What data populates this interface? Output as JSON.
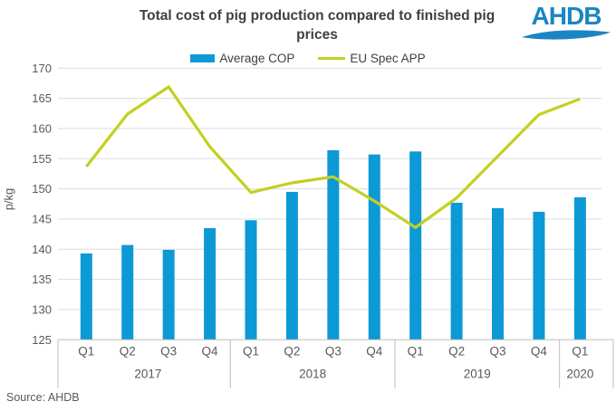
{
  "title": {
    "line1": "Total cost of pig production compared to finished pig",
    "line2": "prices"
  },
  "logo": {
    "text": "AHDB",
    "color": "#1b85c4"
  },
  "legend": [
    {
      "label": "Average COP",
      "type": "bar",
      "color": "#0d99d6"
    },
    {
      "label": "EU Spec APP",
      "type": "line",
      "color": "#c3d021"
    }
  ],
  "source": "Source: AHDB",
  "appearance": {
    "bar_blue": "#0d99d6",
    "line_green": "#c3d021",
    "title_color": "#3f3f3f",
    "label_color": "#595959",
    "grid_color": "#dadde1",
    "axis_color": "#bfbfbf"
  },
  "chart_data": {
    "type": "bar",
    "subtype": "bar+line combo",
    "title": "Total cost of pig production compared to finished pig prices",
    "categories": [
      "Q1",
      "Q2",
      "Q3",
      "Q4",
      "Q1",
      "Q2",
      "Q3",
      "Q4",
      "Q1",
      "Q2",
      "Q3",
      "Q4",
      "Q1"
    ],
    "year_groups": [
      {
        "label": "2017",
        "count": 4
      },
      {
        "label": "2018",
        "count": 4
      },
      {
        "label": "2019",
        "count": 4
      },
      {
        "label": "2020",
        "count": 1
      }
    ],
    "series": [
      {
        "name": "Average COP",
        "type": "bar",
        "color": "#0d99d6",
        "values": [
          139.3,
          140.7,
          139.9,
          143.5,
          144.8,
          149.5,
          156.4,
          155.7,
          156.2,
          147.7,
          146.8,
          146.2,
          148.6
        ]
      },
      {
        "name": "EU Spec APP",
        "type": "line",
        "color": "#c3d021",
        "values": [
          153.7,
          162.4,
          166.9,
          157.0,
          149.4,
          151.0,
          152.0,
          148.0,
          143.6,
          148.5,
          155.4,
          162.3,
          164.9
        ]
      }
    ],
    "xlabel": "",
    "ylabel": "p/kg",
    "ylim": [
      125,
      170
    ],
    "ytick_step": 5,
    "yticks": [
      125,
      130,
      135,
      140,
      145,
      150,
      155,
      160,
      165,
      170
    ],
    "grid": true,
    "legend_position": "top"
  }
}
